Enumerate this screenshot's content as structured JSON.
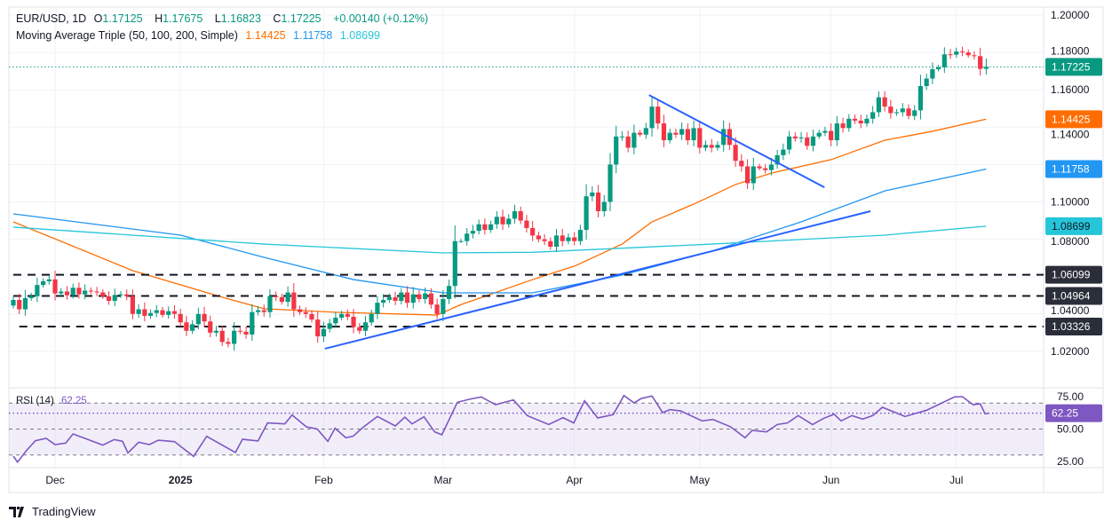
{
  "header": {
    "symbol": "EUR/USD, 1D",
    "open_label": "O",
    "open": "1.17125",
    "high_label": "H",
    "high": "1.17675",
    "low_label": "L",
    "low": "1.16823",
    "close_label": "C",
    "close": "1.17225",
    "change": "+0.00140 (+0.12%)",
    "ma_title": "Moving Average Triple (50, 100, 200, Simple)",
    "ma50": "1.14425",
    "ma100": "1.11758",
    "ma200": "1.08699"
  },
  "rsi_legend": {
    "title": "RSI (14)",
    "value": "62.25"
  },
  "watermark": "TradingView",
  "colors": {
    "up": "#089981",
    "down": "#F23645",
    "ma50": "#FF6D00",
    "ma100": "#2196F3",
    "ma200": "#26C6DA",
    "rsi": "#7E57C2",
    "trendline": "#2962FF",
    "level": "#131722"
  },
  "chart_data": {
    "type": "candlestick",
    "symbol": "EUR/USD",
    "timeframe": "1D",
    "ylim": [
      1.0,
      1.2
    ],
    "price_ticks": [
      "1.20000",
      "1.18000",
      "1.16000",
      "1.14000",
      "1.10000",
      "1.08000",
      "1.04000",
      "1.02000"
    ],
    "price_tick_values": [
      1.2,
      1.18,
      1.16,
      1.14,
      1.1,
      1.08,
      1.04,
      1.02
    ],
    "time_labels": [
      {
        "label": "Dec",
        "index": 7,
        "bold": false
      },
      {
        "label": "2025",
        "index": 28,
        "bold": true
      },
      {
        "label": "Feb",
        "index": 52,
        "bold": false
      },
      {
        "label": "Mar",
        "index": 72,
        "bold": false
      },
      {
        "label": "Apr",
        "index": 94,
        "bold": false
      },
      {
        "label": "May",
        "index": 115,
        "bold": false
      },
      {
        "label": "Jun",
        "index": 137,
        "bold": false
      },
      {
        "label": "Jul",
        "index": 158,
        "bold": false
      }
    ],
    "closes": [
      1.0475,
      1.0425,
      1.0485,
      1.0495,
      1.0555,
      1.0575,
      1.0585,
      1.051,
      1.052,
      1.05,
      1.054,
      1.0505,
      1.0525,
      1.052,
      1.0515,
      1.0495,
      1.047,
      1.05,
      1.0505,
      1.0495,
      1.04,
      1.0425,
      1.039,
      1.0405,
      1.042,
      1.0395,
      1.0415,
      1.04,
      1.0355,
      1.031,
      1.0345,
      1.04,
      1.036,
      1.03,
      1.031,
      1.025,
      1.024,
      1.031,
      1.0305,
      1.029,
      1.041,
      1.042,
      1.041,
      1.0495,
      1.049,
      1.0465,
      1.0515,
      1.0425,
      1.041,
      1.04,
      1.037,
      1.028,
      1.032,
      1.035,
      1.038,
      1.04,
      1.0385,
      1.033,
      1.031,
      1.0355,
      1.04,
      1.046,
      1.0475,
      1.049,
      1.047,
      1.0515,
      1.046,
      1.0505,
      1.048,
      1.051,
      1.045,
      1.04,
      1.048,
      1.055,
      1.079,
      1.079,
      1.083,
      1.0845,
      1.088,
      1.085,
      1.088,
      1.092,
      1.088,
      1.091,
      1.095,
      1.09,
      1.086,
      1.082,
      1.08,
      1.079,
      1.076,
      1.082,
      1.079,
      1.081,
      1.079,
      1.085,
      1.103,
      1.105,
      1.095,
      1.1,
      1.12,
      1.135,
      1.135,
      1.129,
      1.137,
      1.136,
      1.1395,
      1.151,
      1.142,
      1.133,
      1.137,
      1.136,
      1.139,
      1.133,
      1.1395,
      1.129,
      1.1305,
      1.129,
      1.1305,
      1.139,
      1.1305,
      1.122,
      1.119,
      1.11,
      1.119,
      1.118,
      1.117,
      1.12,
      1.125,
      1.128,
      1.135,
      1.134,
      1.1345,
      1.13,
      1.135,
      1.137,
      1.138,
      1.133,
      1.142,
      1.1395,
      1.1445,
      1.1435,
      1.142,
      1.1445,
      1.148,
      1.156,
      1.151,
      1.1475,
      1.148,
      1.15,
      1.146,
      1.149,
      1.162,
      1.166,
      1.171,
      1.172,
      1.179,
      1.1788,
      1.1805,
      1.18,
      1.1785,
      1.178,
      1.1712,
      1.1723
    ],
    "last": {
      "open": 1.17125,
      "high": 1.17675,
      "low": 1.16823,
      "close": 1.17225
    },
    "moving_averages": [
      {
        "name": "MA50",
        "value": "1.14425",
        "points": [
          [
            0,
            1.0893
          ],
          [
            20,
            1.0632
          ],
          [
            35,
            1.049
          ],
          [
            42,
            1.0428
          ],
          [
            54,
            1.0409
          ],
          [
            71,
            1.0394
          ],
          [
            75,
            1.045
          ],
          [
            87,
            1.0584
          ],
          [
            94,
            1.0656
          ],
          [
            102,
            1.0774
          ],
          [
            107,
            1.0893
          ],
          [
            114,
            1.0988
          ],
          [
            121,
            1.1093
          ],
          [
            127,
            1.1154
          ],
          [
            137,
            1.1226
          ],
          [
            146,
            1.133
          ],
          [
            154,
            1.1378
          ],
          [
            163,
            1.1443
          ]
        ]
      },
      {
        "name": "MA100",
        "value": "1.11758",
        "points": [
          [
            0,
            1.0936
          ],
          [
            28,
            1.0822
          ],
          [
            42,
            1.0703
          ],
          [
            57,
            1.0584
          ],
          [
            72,
            1.0513
          ],
          [
            87,
            1.0513
          ],
          [
            102,
            1.0608
          ],
          [
            117,
            1.0736
          ],
          [
            132,
            1.0893
          ],
          [
            146,
            1.1059
          ],
          [
            163,
            1.1176
          ]
        ]
      },
      {
        "name": "MA200",
        "value": "1.08699",
        "points": [
          [
            0,
            1.0865
          ],
          [
            42,
            1.0774
          ],
          [
            72,
            1.0727
          ],
          [
            87,
            1.073
          ],
          [
            117,
            1.0774
          ],
          [
            146,
            1.0822
          ],
          [
            163,
            1.087
          ]
        ]
      }
    ],
    "levels": [
      {
        "value": 1.06099,
        "label": "1.06099",
        "start_index": 0
      },
      {
        "value": 1.04964,
        "label": "1.04964",
        "start_index": 0
      },
      {
        "value": 1.03326,
        "label": "1.03326",
        "start_index": 1
      }
    ],
    "trendlines": [
      {
        "from": [
          52.2,
          1.0214
        ],
        "to": [
          143.6,
          1.095
        ]
      },
      {
        "from": [
          106.5,
          1.1572
        ],
        "to": [
          135.9,
          1.1078
        ]
      }
    ],
    "rsi": {
      "period": 14,
      "ticks": [
        "75.00",
        "50.00",
        "25.00"
      ],
      "tick_values": [
        75,
        50,
        25
      ],
      "bands": [
        70,
        50,
        30
      ],
      "current": 62.25,
      "points": [
        [
          0,
          29.1
        ],
        [
          0.7,
          24.5
        ],
        [
          2.2,
          33.4
        ],
        [
          3.7,
          41.0
        ],
        [
          5.5,
          42.8
        ],
        [
          7,
          38.0
        ],
        [
          8.8,
          39.2
        ],
        [
          10,
          46.2
        ],
        [
          12,
          42.8
        ],
        [
          15,
          37.6
        ],
        [
          16.9,
          41.9
        ],
        [
          18.3,
          40.5
        ],
        [
          19.2,
          31.6
        ],
        [
          21,
          39.8
        ],
        [
          22.8,
          38.0
        ],
        [
          24.3,
          41.4
        ],
        [
          27,
          40.3
        ],
        [
          28.6,
          34.6
        ],
        [
          30.2,
          28.9
        ],
        [
          32.4,
          44.4
        ],
        [
          37.2,
          31.9
        ],
        [
          38.4,
          42.1
        ],
        [
          41,
          40.8
        ],
        [
          42.6,
          54.7
        ],
        [
          45.5,
          54.0
        ],
        [
          46.7,
          60.9
        ],
        [
          49.1,
          51.7
        ],
        [
          50.9,
          50.1
        ],
        [
          52.7,
          40.5
        ],
        [
          53.9,
          50.6
        ],
        [
          55.7,
          43.3
        ],
        [
          56.9,
          44.4
        ],
        [
          58.7,
          51.7
        ],
        [
          61,
          59.7
        ],
        [
          64,
          52.4
        ],
        [
          65.6,
          59.2
        ],
        [
          66.8,
          54.0
        ],
        [
          68.8,
          59.5
        ],
        [
          70.6,
          47.8
        ],
        [
          71.8,
          45.6
        ],
        [
          74.4,
          70.7
        ],
        [
          76.6,
          73.2
        ],
        [
          78.4,
          74.8
        ],
        [
          80.8,
          68.8
        ],
        [
          83.8,
          72.5
        ],
        [
          86.1,
          60.4
        ],
        [
          89.7,
          53.5
        ],
        [
          92.1,
          58.8
        ],
        [
          93.9,
          54.7
        ],
        [
          95.7,
          71.8
        ],
        [
          97.9,
          58.6
        ],
        [
          100.5,
          61.1
        ],
        [
          102.3,
          75.9
        ],
        [
          104,
          70.2
        ],
        [
          105.2,
          73.6
        ],
        [
          107,
          75.5
        ],
        [
          108.8,
          62.7
        ],
        [
          110,
          65.0
        ],
        [
          111.8,
          64.0
        ],
        [
          115.4,
          56.3
        ],
        [
          117.2,
          57.4
        ],
        [
          120.2,
          51.7
        ],
        [
          122.6,
          43.3
        ],
        [
          123.8,
          49.0
        ],
        [
          126.2,
          47.8
        ],
        [
          128,
          53.5
        ],
        [
          129.7,
          54.7
        ],
        [
          131.5,
          60.4
        ],
        [
          133.9,
          53.5
        ],
        [
          135.7,
          58.1
        ],
        [
          137.5,
          61.5
        ],
        [
          138.7,
          56.3
        ],
        [
          140.5,
          60.4
        ],
        [
          142.3,
          57.7
        ],
        [
          144,
          60.4
        ],
        [
          145.6,
          66.8
        ],
        [
          147.6,
          63.1
        ],
        [
          149.4,
          59.7
        ],
        [
          153,
          64.5
        ],
        [
          157.7,
          74.8
        ],
        [
          159,
          75.0
        ],
        [
          160.8,
          68.8
        ],
        [
          162,
          69.5
        ],
        [
          162.8,
          61.8
        ],
        [
          163.5,
          62.25
        ]
      ]
    }
  }
}
